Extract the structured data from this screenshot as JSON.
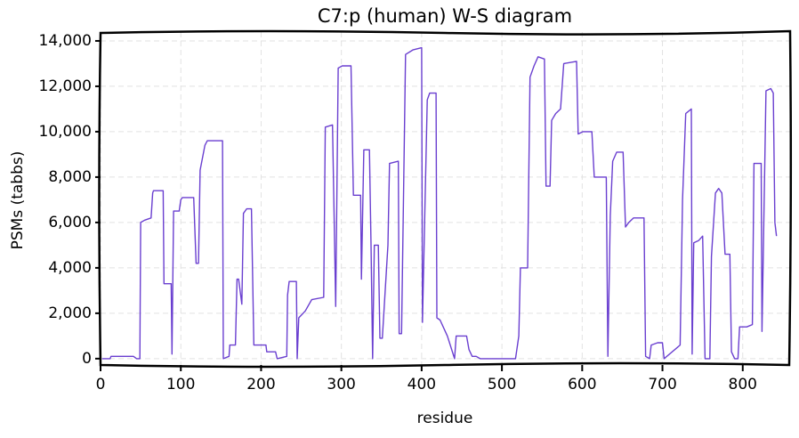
{
  "chart_data": {
    "type": "line",
    "title": "C7:p (human) W-S diagram",
    "x_label": "residue",
    "y_label": "PSMs (tabbs)",
    "color": "#6a3fd0",
    "grid": true,
    "xlim": [
      0,
      859
    ],
    "ylim": [
      -280,
      14390
    ],
    "xticks": [
      0,
      100,
      200,
      300,
      400,
      500,
      600,
      700,
      800
    ],
    "yticks": [
      0,
      {
        "value": 2000,
        "label": "2,000"
      },
      {
        "value": 4000,
        "label": "4,000"
      },
      {
        "value": 6000,
        "label": "6,000"
      },
      {
        "value": 8000,
        "label": "8,000"
      },
      {
        "value": 10000,
        "label": "10,000"
      },
      {
        "value": 12000,
        "label": "12,000"
      },
      {
        "value": 14000,
        "label": "14,000"
      }
    ],
    "x": [
      2,
      12,
      13,
      41,
      45,
      49,
      50,
      55,
      63,
      65,
      66,
      78,
      79,
      88,
      89,
      91,
      98,
      100,
      102,
      116,
      119,
      122,
      124,
      130,
      133,
      152,
      153,
      160,
      161,
      168,
      170,
      172,
      176,
      178,
      182,
      188,
      191,
      206,
      207,
      218,
      220,
      232,
      233,
      235,
      244,
      245,
      247,
      255,
      263,
      278,
      280,
      289,
      293,
      296,
      301,
      312,
      315,
      324,
      325,
      328,
      335,
      337,
      339,
      341,
      346,
      348,
      351,
      358,
      360,
      371,
      372,
      375,
      380,
      389,
      400,
      401,
      407,
      410,
      418,
      419,
      423,
      432,
      441,
      443,
      456,
      459,
      463,
      468,
      473,
      517,
      521,
      523,
      532,
      535,
      540,
      545,
      553,
      555,
      560,
      562,
      567,
      573,
      577,
      593,
      595,
      601,
      612,
      615,
      630,
      632,
      635,
      638,
      643,
      651,
      654,
      658,
      664,
      677,
      679,
      684,
      686,
      694,
      700,
      702,
      722,
      725,
      729,
      736,
      737,
      739,
      745,
      750,
      753,
      759,
      761,
      766,
      770,
      774,
      778,
      784,
      786,
      790,
      794,
      796,
      805,
      812,
      814,
      823,
      824,
      829,
      835,
      838,
      840,
      842
    ],
    "values": [
      0,
      0,
      100,
      100,
      0,
      0,
      6000,
      6100,
      6200,
      7300,
      7400,
      7400,
      3300,
      3300,
      200,
      6500,
      6500,
      7000,
      7100,
      7100,
      4200,
      4200,
      8300,
      9400,
      9600,
      9600,
      0,
      100,
      600,
      600,
      3500,
      3500,
      2400,
      6400,
      6600,
      6600,
      600,
      600,
      300,
      300,
      0,
      100,
      2800,
      3400,
      3400,
      0,
      1800,
      2100,
      2600,
      2700,
      10200,
      10300,
      2300,
      12800,
      12900,
      12900,
      7200,
      7200,
      3500,
      9200,
      9200,
      5000,
      0,
      5000,
      5000,
      900,
      900,
      5000,
      8600,
      8700,
      1100,
      1100,
      13400,
      13600,
      13700,
      1600,
      11400,
      11700,
      11700,
      1800,
      1700,
      1000,
      0,
      1000,
      1000,
      400,
      100,
      100,
      0,
      0,
      1000,
      4000,
      4000,
      12400,
      12900,
      13300,
      13200,
      7600,
      7600,
      10500,
      10800,
      11000,
      13000,
      13100,
      9900,
      10000,
      10000,
      8000,
      8000,
      100,
      6300,
      8700,
      9100,
      9100,
      5800,
      6000,
      6200,
      6200,
      100,
      0,
      600,
      700,
      700,
      0,
      600,
      7000,
      10800,
      11000,
      200,
      5100,
      5200,
      5400,
      0,
      0,
      4500,
      7300,
      7500,
      7300,
      4600,
      4600,
      300,
      0,
      0,
      1400,
      1400,
      1500,
      8600,
      8600,
      1200,
      11800,
      11900,
      11700,
      6000,
      5400
    ]
  }
}
